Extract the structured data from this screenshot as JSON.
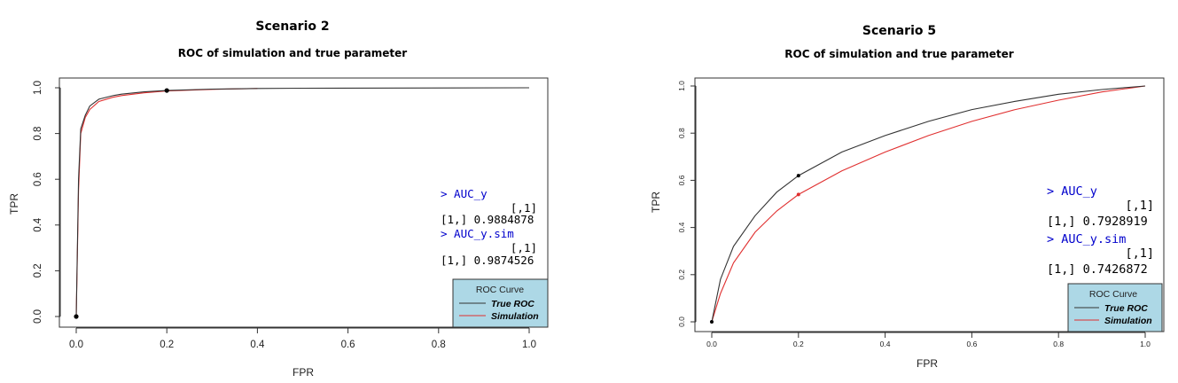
{
  "chart_data": [
    {
      "type": "line",
      "scenario": "Scenario 2",
      "title": "ROC of simulation and true parameter",
      "xlabel": "FPR",
      "ylabel": "TPR",
      "xlim": [
        0,
        1
      ],
      "ylim": [
        0,
        1
      ],
      "x_ticks": [
        "0.0",
        "0.2",
        "0.4",
        "0.6",
        "0.8",
        "1.0"
      ],
      "y_ticks": [
        "0.0",
        "0.2",
        "0.4",
        "0.6",
        "0.8",
        "1.0"
      ],
      "grid": false,
      "legend_position": "bottom-right",
      "legend_title": "ROC Curve",
      "series": [
        {
          "name": "True ROC",
          "color": "#333333",
          "x": [
            0,
            0.005,
            0.01,
            0.02,
            0.03,
            0.05,
            0.08,
            0.1,
            0.15,
            0.2,
            0.3,
            0.4,
            0.5,
            0.7,
            1.0
          ],
          "y": [
            0,
            0.6,
            0.82,
            0.88,
            0.92,
            0.95,
            0.965,
            0.972,
            0.982,
            0.988,
            0.994,
            0.997,
            0.998,
            0.999,
            1.0
          ]
        },
        {
          "name": "Simulation",
          "color": "#e03030",
          "x": [
            0,
            0.005,
            0.01,
            0.02,
            0.03,
            0.05,
            0.08,
            0.1,
            0.15,
            0.2,
            0.3,
            0.4
          ],
          "y": [
            0,
            0.55,
            0.8,
            0.87,
            0.905,
            0.94,
            0.958,
            0.966,
            0.978,
            0.986,
            0.993,
            0.997
          ]
        }
      ],
      "points": [
        {
          "x": 0,
          "y": 0,
          "color": "#000000"
        },
        {
          "x": 0.2,
          "y": 0.988,
          "color": "#000000"
        }
      ],
      "console_lines": [
        "> AUC_y",
        "[,1]",
        "[1,] 0.9884878",
        "> AUC_y.sim",
        "[,1]",
        "[1,] 0.9874526"
      ]
    },
    {
      "type": "line",
      "scenario": "Scenario 5",
      "title": "ROC of simulation and true parameter",
      "xlabel": "FPR",
      "ylabel": "TPR",
      "xlim": [
        0,
        1
      ],
      "ylim": [
        0,
        1
      ],
      "x_ticks": [
        "0.0",
        "0.2",
        "0.4",
        "0.6",
        "0.8",
        "1.0"
      ],
      "y_ticks": [
        "0.0",
        "0.2",
        "0.4",
        "0.6",
        "0.8",
        "1.0"
      ],
      "grid": false,
      "legend_position": "bottom-right",
      "legend_title": "ROC Curve",
      "series": [
        {
          "name": "True ROC",
          "color": "#333333",
          "x": [
            0,
            0.02,
            0.05,
            0.1,
            0.15,
            0.2,
            0.3,
            0.4,
            0.5,
            0.6,
            0.7,
            0.8,
            0.9,
            1.0
          ],
          "y": [
            0,
            0.18,
            0.32,
            0.45,
            0.55,
            0.62,
            0.72,
            0.79,
            0.85,
            0.9,
            0.935,
            0.965,
            0.985,
            1.0
          ]
        },
        {
          "name": "Simulation",
          "color": "#e03030",
          "x": [
            0,
            0.02,
            0.05,
            0.1,
            0.15,
            0.2,
            0.3,
            0.4,
            0.5,
            0.6,
            0.7,
            0.8,
            0.9,
            1.0
          ],
          "y": [
            0,
            0.12,
            0.25,
            0.38,
            0.47,
            0.54,
            0.64,
            0.72,
            0.79,
            0.85,
            0.9,
            0.94,
            0.975,
            1.0
          ]
        }
      ],
      "points": [
        {
          "x": 0,
          "y": 0,
          "color": "#000000"
        },
        {
          "x": 0.2,
          "y": 0.62,
          "color": "#000000"
        },
        {
          "x": 0.2,
          "y": 0.54,
          "color": "#e03030"
        }
      ],
      "console_lines": [
        "> AUC_y",
        "[,1]",
        "[1,] 0.7928919",
        "> AUC_y.sim",
        "[,1]",
        "[1,] 0.7426872"
      ]
    }
  ]
}
